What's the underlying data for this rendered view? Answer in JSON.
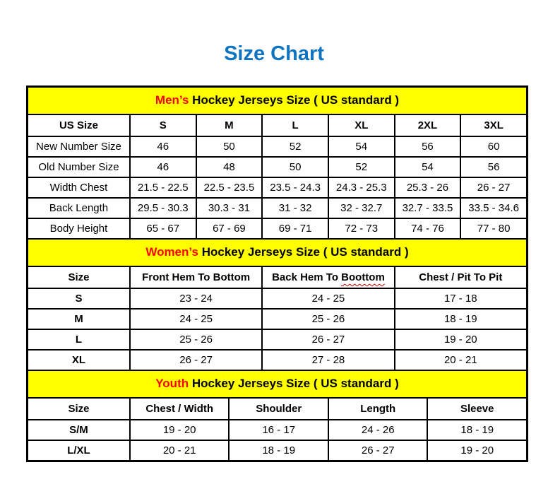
{
  "page": {
    "title": "Size Chart"
  },
  "colors": {
    "title_blue": "#0E74C2",
    "banner_yellow": "#FFFF00",
    "highlight_red": "#FF0000",
    "border_black": "#000000"
  },
  "sections": {
    "mens": {
      "banner": {
        "highlight": "Men’s",
        "rest": " Hockey Jerseys Size ( US standard )"
      },
      "columns": [
        "US Size",
        "S",
        "M",
        "L",
        "XL",
        "2XL",
        "3XL"
      ],
      "rows": [
        {
          "label": "New Number Size",
          "values": [
            "46",
            "50",
            "52",
            "54",
            "56",
            "60"
          ]
        },
        {
          "label": "Old Number Size",
          "values": [
            "46",
            "48",
            "50",
            "52",
            "54",
            "56"
          ]
        },
        {
          "label": "Width Chest",
          "values": [
            "21.5 - 22.5",
            "22.5 - 23.5",
            "23.5 - 24.3",
            "24.3 - 25.3",
            "25.3 - 26",
            "26 - 27"
          ]
        },
        {
          "label": "Back Length",
          "values": [
            "29.5 - 30.3",
            "30.3 - 31",
            "31 - 32",
            "32 - 32.7",
            "32.7 - 33.5",
            "33.5 - 34.6"
          ]
        },
        {
          "label": "Body Height",
          "values": [
            "65 - 67",
            "67 - 69",
            "69 - 71",
            "72 - 73",
            "74 - 76",
            "77 - 80"
          ]
        }
      ]
    },
    "womens": {
      "banner": {
        "highlight": "Women’s",
        "rest": " Hockey Jerseys Size ( US standard )"
      },
      "columns": [
        "Size",
        "Front Hem To Bottom",
        "Back Hem To",
        "Chest / Pit To Pit"
      ],
      "misspelled_word": "Boottom",
      "rows": [
        {
          "label": "S",
          "values": [
            "23 - 24",
            "24 - 25",
            "17 - 18"
          ]
        },
        {
          "label": "M",
          "values": [
            "24 - 25",
            "25 - 26",
            "18 - 19"
          ]
        },
        {
          "label": "L",
          "values": [
            "25 - 26",
            "26 - 27",
            "19 - 20"
          ]
        },
        {
          "label": "XL",
          "values": [
            "26 - 27",
            "27 - 28",
            "20 - 21"
          ]
        }
      ]
    },
    "youth": {
      "banner": {
        "highlight": "Youth",
        "rest": " Hockey Jerseys Size ( US standard )"
      },
      "columns": [
        "Size",
        "Chest / Width",
        "Shoulder",
        "Length",
        "Sleeve"
      ],
      "rows": [
        {
          "label": "S/M",
          "values": [
            "19 - 20",
            "16 - 17",
            "24 - 26",
            "18 - 19"
          ]
        },
        {
          "label": "L/XL",
          "values": [
            "20 - 21",
            "18 - 19",
            "26 - 27",
            "19 - 20"
          ]
        }
      ]
    }
  }
}
